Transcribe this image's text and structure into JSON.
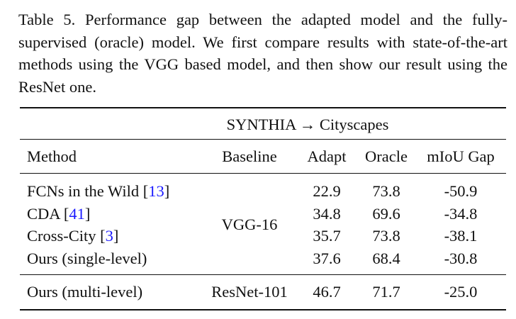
{
  "caption": "Table 5. Performance gap between the adapted model and the fully-supervised (oracle) model.  We first compare results with state-of-the-art methods using the VGG based model, and then show our result using the ResNet one.",
  "table": {
    "group_header": "SYNTHIA → Cityscapes",
    "columns": [
      "Method",
      "Baseline",
      "Adapt",
      "Oracle",
      "mIoU Gap"
    ],
    "sections": [
      {
        "baseline": "VGG-16",
        "rows": [
          [
            "FCNs in the Wild [13]",
            "22.9",
            "73.8",
            "-50.9"
          ],
          [
            "CDA [41]",
            "34.8",
            "69.6",
            "-34.8"
          ],
          [
            "Cross-City [3]",
            "35.7",
            "73.8",
            "-38.1"
          ],
          [
            "Ours (single-level)",
            "37.6",
            "68.4",
            "-30.8"
          ]
        ]
      },
      {
        "baseline": "ResNet-101",
        "rows": [
          [
            "Ours (multi-level)",
            "46.7",
            "71.7",
            "-25.0"
          ]
        ]
      }
    ]
  }
}
